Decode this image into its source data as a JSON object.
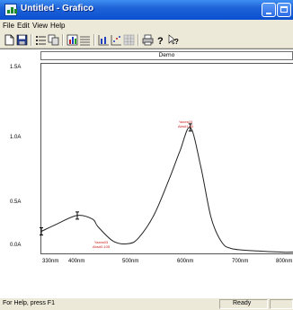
{
  "window": {
    "title": "Untitled - Grafico"
  },
  "menu": [
    "File",
    "Edit",
    "View",
    "Help"
  ],
  "toolbar": {
    "buttons": [
      "new-icon",
      "save-icon",
      "list-icon",
      "copy-icon",
      "chart-icon",
      "lines-icon",
      "bars-icon",
      "scatter-icon",
      "grid-icon",
      "print-icon",
      "help-icon",
      "context-help-icon"
    ]
  },
  "chart": {
    "legend": "Demo",
    "y_ticks": [
      "1.5A",
      "1.0A",
      "0.5A",
      "0.0A"
    ],
    "x_ticks": [
      "330nm",
      "400nm",
      "500nm",
      "600nm",
      "700nm",
      "800nm"
    ],
    "annotations": [
      {
        "text1": "Yaxes03",
        "text2": "Abs#1.03"
      },
      {
        "text1": "Yaxes03",
        "text2": "Abs#0.105"
      }
    ]
  },
  "chart_data": {
    "type": "line",
    "title": "Demo",
    "xlim": [
      330,
      820
    ],
    "ylim": [
      0,
      1.5
    ],
    "x": [
      330,
      360,
      400,
      430,
      440,
      470,
      500,
      520,
      550,
      580,
      600,
      620,
      640,
      660,
      680,
      700,
      750,
      800,
      820
    ],
    "series": [
      {
        "name": "Demo",
        "values": [
          0.18,
          0.24,
          0.31,
          0.28,
          0.22,
          0.1,
          0.08,
          0.13,
          0.32,
          0.62,
          0.84,
          1.03,
          0.72,
          0.3,
          0.1,
          0.04,
          0.02,
          0.01,
          0.01
        ]
      }
    ]
  },
  "status": {
    "help": "For Help, press F1",
    "ready": "Ready",
    "empty": ""
  }
}
